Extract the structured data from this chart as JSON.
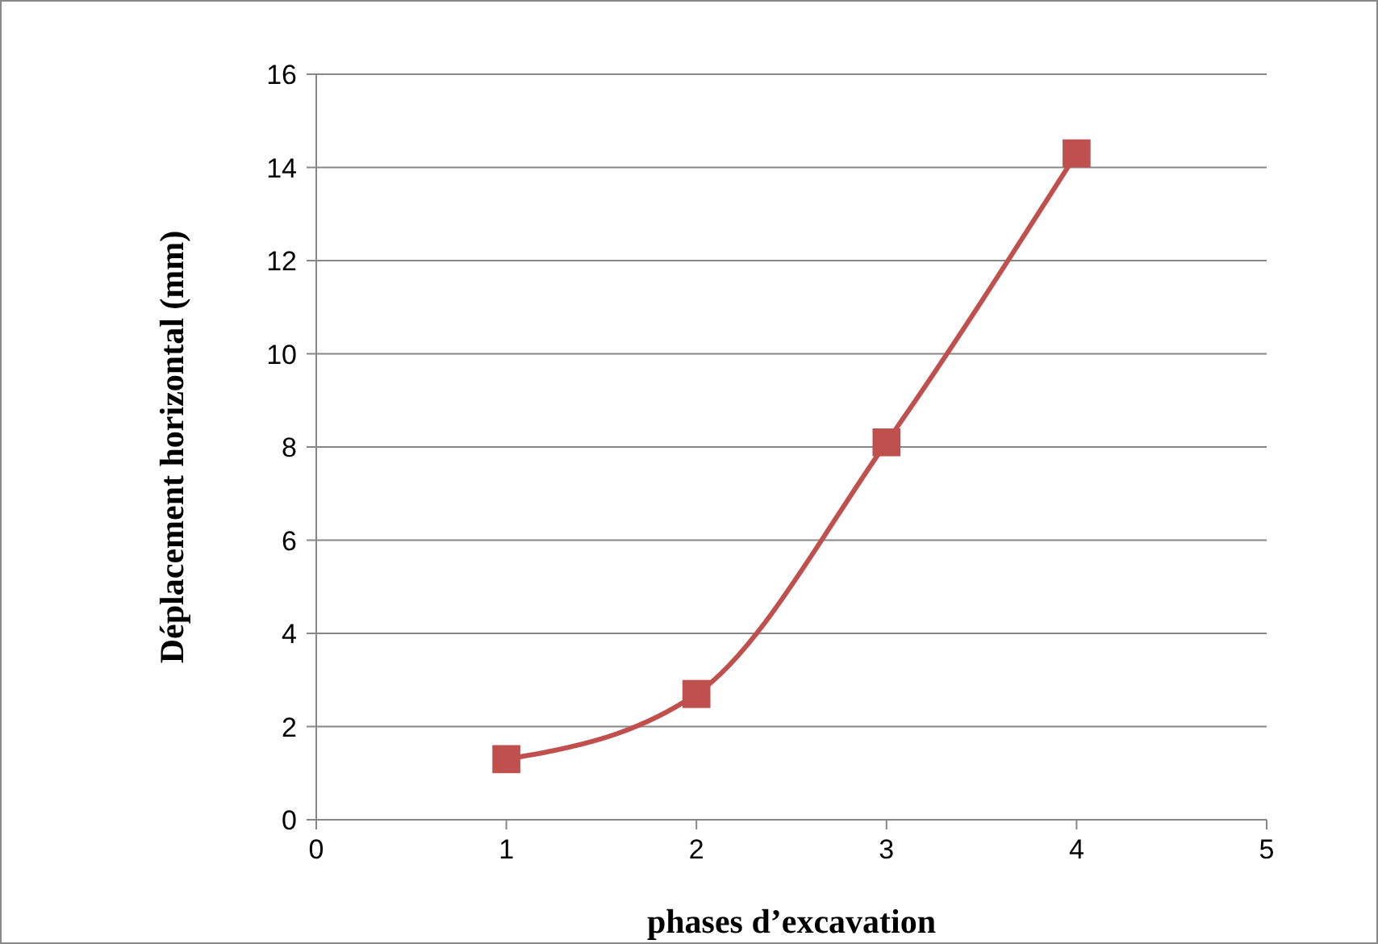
{
  "chart_data": {
    "type": "line",
    "xlabel": "phases d’excavation",
    "ylabel": "Déplacement horizontal (mm)",
    "x": [
      1,
      2,
      3,
      4
    ],
    "series": [
      {
        "color": "#c0504d",
        "values": [
          1.3,
          2.7,
          8.1,
          14.3
        ]
      }
    ],
    "xlim": [
      0,
      5
    ],
    "xticks": [
      0,
      1,
      2,
      3,
      4,
      5
    ],
    "ylim": [
      0,
      16
    ],
    "yticks": [
      0,
      2,
      4,
      6,
      8,
      10,
      12,
      14,
      16
    ],
    "grid": "y",
    "marker": "square",
    "line_style": "solid"
  }
}
